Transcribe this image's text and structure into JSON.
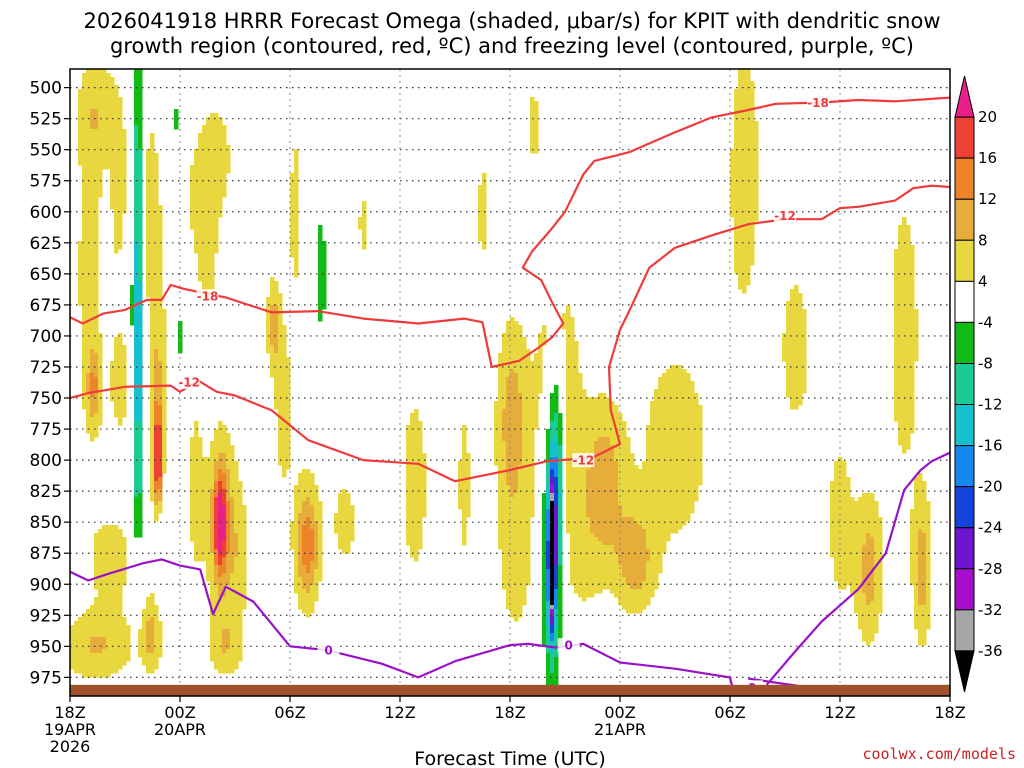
{
  "chart_data": {
    "type": "heatmap",
    "title_line1": "2026041918 HRRR Forecast Omega (shaded, μbar/s) for KPIT with dendritic snow",
    "title_line2": "growth region (contoured, red, ºC) and freezing level (contoured, purple, ºC)",
    "xlabel": "Forecast Time (UTC)",
    "y_ticks": [
      "500",
      "525",
      "550",
      "575",
      "600",
      "625",
      "650",
      "675",
      "700",
      "725",
      "750",
      "775",
      "800",
      "825",
      "850",
      "875",
      "900",
      "925",
      "950",
      "975"
    ],
    "y_values": [
      500,
      525,
      550,
      575,
      600,
      625,
      650,
      675,
      700,
      725,
      750,
      775,
      800,
      825,
      850,
      875,
      900,
      925,
      950,
      975
    ],
    "ylim": [
      485,
      990
    ],
    "x_ticks": [
      {
        "h": 0,
        "l1": "18Z",
        "l2": "19APR",
        "l3": "2026"
      },
      {
        "h": 6,
        "l1": "00Z",
        "l2": "20APR",
        "l3": ""
      },
      {
        "h": 12,
        "l1": "06Z",
        "l2": "",
        "l3": ""
      },
      {
        "h": 18,
        "l1": "12Z",
        "l2": "",
        "l3": ""
      },
      {
        "h": 24,
        "l1": "18Z",
        "l2": "",
        "l3": ""
      },
      {
        "h": 30,
        "l1": "00Z",
        "l2": "21APR",
        "l3": ""
      },
      {
        "h": 36,
        "l1": "06Z",
        "l2": "",
        "l3": ""
      },
      {
        "h": 42,
        "l1": "12Z",
        "l2": "",
        "l3": ""
      },
      {
        "h": 48,
        "l1": "18Z",
        "l2": "",
        "l3": ""
      }
    ],
    "xlim": [
      0,
      48
    ],
    "colorbar": {
      "labels": [
        "20",
        "16",
        "12",
        "8",
        "4",
        "-4",
        "-8",
        "-12",
        "-16",
        "-20",
        "-24",
        "-28",
        "-32",
        "-36"
      ],
      "colors": [
        "#e8208a",
        "#ef4035",
        "#ee8429",
        "#e6ad3b",
        "#e9d73f",
        "#ffffff",
        "#11bb16",
        "#1ccb93",
        "#17c0cf",
        "#1589f0",
        "#1443de",
        "#6d16cd",
        "#a410c9",
        "#a6a6a6",
        "#000000"
      ]
    },
    "omega_blobs": [
      {
        "h": 1.3,
        "p": 520,
        "sh": 0.9,
        "sp": 40,
        "v": 5
      },
      {
        "h": 1.0,
        "p": 650,
        "sh": 1.0,
        "sp": 180,
        "v": 5
      },
      {
        "h": 1.3,
        "p": 740,
        "sh": 0.35,
        "sp": 30,
        "v": 10
      },
      {
        "h": 2.5,
        "p": 570,
        "sh": 0.8,
        "sp": 90,
        "v": 6
      },
      {
        "h": 2.3,
        "p": 880,
        "sh": 1.3,
        "sp": 40,
        "v": 6
      },
      {
        "h": 1.5,
        "p": 950,
        "sh": 2.2,
        "sp": 30,
        "v": 8
      },
      {
        "h": 2.8,
        "p": 740,
        "sh": 0.8,
        "sp": 60,
        "v": 5
      },
      {
        "h": 4.4,
        "p": 600,
        "sh": 0.5,
        "sp": 90,
        "v": 6
      },
      {
        "h": 4.8,
        "p": 770,
        "sh": 0.5,
        "sp": 130,
        "v": 9
      },
      {
        "h": 4.8,
        "p": 800,
        "sh": 0.2,
        "sp": 40,
        "v": 18
      },
      {
        "h": 4.4,
        "p": 940,
        "sh": 0.6,
        "sp": 30,
        "v": 8
      },
      {
        "h": 6.8,
        "p": 820,
        "sh": 0.6,
        "sp": 120,
        "v": 4.5
      },
      {
        "h": 8.3,
        "p": 850,
        "sh": 0.9,
        "sp": 85,
        "v": 9
      },
      {
        "h": 8.2,
        "p": 850,
        "sh": 0.35,
        "sp": 40,
        "v": 17
      },
      {
        "h": 8.5,
        "p": 950,
        "sh": 1.0,
        "sp": 25,
        "v": 6
      },
      {
        "h": 11.1,
        "p": 690,
        "sh": 0.4,
        "sp": 40,
        "v": 9
      },
      {
        "h": 11.6,
        "p": 760,
        "sh": 0.5,
        "sp": 70,
        "v": 6
      },
      {
        "h": 12.3,
        "p": 600,
        "sh": 0.5,
        "sp": 110,
        "v": 5
      },
      {
        "h": 13.0,
        "p": 870,
        "sh": 0.6,
        "sp": 40,
        "v": 10
      },
      {
        "h": 12.8,
        "p": 860,
        "sh": 0.9,
        "sp": 80,
        "v": 5
      },
      {
        "h": 15.0,
        "p": 850,
        "sh": 1.0,
        "sp": 55,
        "v": 5
      },
      {
        "h": 16.0,
        "p": 610,
        "sh": 0.4,
        "sp": 40,
        "v": 5
      },
      {
        "h": 18.8,
        "p": 820,
        "sh": 1.2,
        "sp": 130,
        "v": 5
      },
      {
        "h": 22.5,
        "p": 600,
        "sh": 0.4,
        "sp": 70,
        "v": 5
      },
      {
        "h": 21.5,
        "p": 820,
        "sh": 0.5,
        "sp": 100,
        "v": 5
      },
      {
        "h": 25.3,
        "p": 530,
        "sh": 0.5,
        "sp": 50,
        "v": 5
      },
      {
        "h": 24.1,
        "p": 760,
        "sh": 0.9,
        "sp": 80,
        "v": 9
      },
      {
        "h": 24.3,
        "p": 880,
        "sh": 1.3,
        "sp": 95,
        "v": 5
      },
      {
        "h": 26.5,
        "p": 720,
        "sh": 1.2,
        "sp": 95,
        "v": 7
      },
      {
        "h": 27.8,
        "p": 850,
        "sh": 1.6,
        "sp": 110,
        "v": 5
      },
      {
        "h": 30.8,
        "p": 880,
        "sh": 1.0,
        "sp": 40,
        "v": 9
      },
      {
        "h": 29.2,
        "p": 820,
        "sh": 1.0,
        "sp": 60,
        "v": 8
      },
      {
        "h": 33.0,
        "p": 790,
        "sh": 3.2,
        "sp": 140,
        "v": 5
      },
      {
        "h": 36.8,
        "p": 560,
        "sh": 1.4,
        "sp": 170,
        "v": 5
      },
      {
        "h": 39.6,
        "p": 710,
        "sh": 1.2,
        "sp": 100,
        "v": 5
      },
      {
        "h": 42.0,
        "p": 850,
        "sh": 1.1,
        "sp": 110,
        "v": 5
      },
      {
        "h": 43.6,
        "p": 890,
        "sh": 0.7,
        "sp": 60,
        "v": 9
      },
      {
        "h": 45.5,
        "p": 700,
        "sh": 1.4,
        "sp": 200,
        "v": 5
      },
      {
        "h": 46.5,
        "p": 890,
        "sh": 0.5,
        "sp": 60,
        "v": 9
      },
      {
        "h": 8.0,
        "p": 550,
        "sh": 1.0,
        "sp": 50,
        "v": 4.5
      },
      {
        "h": 9.3,
        "p": 880,
        "sh": 0.7,
        "sp": 60,
        "v": 4.5
      },
      {
        "h": 7.1,
        "p": 590,
        "sh": 1.5,
        "sp": 60,
        "v": 4.5
      },
      {
        "h": 7.5,
        "p": 645,
        "sh": 0.5,
        "sp": 40,
        "v": 4.5
      },
      {
        "h": 26.5,
        "p": 750,
        "sh": 0.5,
        "sp": 70,
        "v": -9
      },
      {
        "h": 26.6,
        "p": 820,
        "sh": 0.3,
        "sp": 50,
        "v": -9
      },
      {
        "h": 3.7,
        "p": 600,
        "sh": 0.28,
        "sp": 160,
        "v": -12
      },
      {
        "h": 3.7,
        "p": 760,
        "sh": 0.35,
        "sp": 120,
        "v": -11
      },
      {
        "h": 8.6,
        "p": 630,
        "sh": 0.2,
        "sp": 30,
        "v": -5
      },
      {
        "h": 13.7,
        "p": 650,
        "sh": 0.25,
        "sp": 50,
        "v": -8
      },
      {
        "h": 4.9,
        "p": 860,
        "sh": 0.35,
        "sp": 60,
        "v": -7
      },
      {
        "h": 2.0,
        "p": 620,
        "sh": 0.3,
        "sp": 60,
        "v": -6
      },
      {
        "h": 5.8,
        "p": 530,
        "sh": 0.2,
        "sp": 40,
        "v": -5
      },
      {
        "h": 5.9,
        "p": 700,
        "sh": 0.2,
        "sp": 60,
        "v": -6
      }
    ],
    "omega_column": {
      "h": 26.3,
      "p": 876,
      "sh_core": 0.16,
      "sp_core": 48,
      "v_core": -40,
      "sh_out": 0.48,
      "sp_out": 95,
      "v_out": -22
    },
    "dgz_upper": {
      "label": "-18",
      "points": [
        [
          0,
          685
        ],
        [
          0.7,
          690
        ],
        [
          1.8,
          682
        ],
        [
          3,
          679
        ],
        [
          4.2,
          671
        ],
        [
          5,
          671
        ],
        [
          5.5,
          659
        ],
        [
          6.2,
          662
        ],
        [
          8.5,
          669
        ],
        [
          11,
          681
        ],
        [
          13.5,
          680
        ],
        [
          16,
          686
        ],
        [
          17.5,
          688
        ],
        [
          19,
          690
        ],
        [
          21.5,
          686
        ],
        [
          22.5,
          689
        ],
        [
          23,
          725
        ],
        [
          24.5,
          720
        ],
        [
          25.5,
          710
        ],
        [
          26.3,
          701
        ],
        [
          26.9,
          690
        ],
        [
          26.2,
          670
        ],
        [
          25.7,
          655
        ],
        [
          24.7,
          645
        ],
        [
          25.2,
          632
        ],
        [
          26.2,
          615
        ],
        [
          27,
          600
        ],
        [
          28,
          570
        ],
        [
          28.6,
          559
        ],
        [
          30.5,
          552
        ],
        [
          33,
          536
        ],
        [
          35,
          524
        ],
        [
          37,
          518
        ],
        [
          38.5,
          513
        ],
        [
          41,
          512
        ],
        [
          43,
          510
        ],
        [
          45,
          511
        ],
        [
          48,
          508
        ]
      ],
      "label_positions": [
        [
          7.5,
          668
        ],
        [
          40.8,
          512
        ]
      ]
    },
    "dgz_lower": {
      "label": "-12",
      "points": [
        [
          0,
          750
        ],
        [
          1,
          746
        ],
        [
          3,
          741
        ],
        [
          5.5,
          740
        ],
        [
          6,
          745
        ],
        [
          7,
          736
        ],
        [
          8,
          745
        ],
        [
          9,
          748
        ],
        [
          11,
          760
        ],
        [
          13,
          784
        ],
        [
          16,
          800
        ],
        [
          19,
          803
        ],
        [
          21,
          817
        ],
        [
          24,
          808
        ],
        [
          26,
          801
        ],
        [
          28.5,
          798
        ],
        [
          30,
          787
        ],
        [
          29.5,
          760
        ],
        [
          29.4,
          725
        ],
        [
          30,
          695
        ],
        [
          30.5,
          680
        ],
        [
          31.6,
          645
        ],
        [
          33,
          629
        ],
        [
          35,
          619
        ],
        [
          37,
          610
        ],
        [
          39,
          606
        ],
        [
          41,
          606
        ],
        [
          42,
          597
        ],
        [
          43,
          596
        ],
        [
          45,
          591
        ],
        [
          46,
          581
        ],
        [
          47,
          579
        ],
        [
          48,
          580
        ]
      ],
      "label_positions": [
        [
          6.5,
          737
        ],
        [
          28,
          800
        ],
        [
          39,
          603
        ]
      ]
    },
    "freezing_level": {
      "label": "0",
      "points": [
        [
          0,
          890
        ],
        [
          1,
          897
        ],
        [
          2,
          892
        ],
        [
          4,
          883
        ],
        [
          5,
          880
        ],
        [
          6,
          885
        ],
        [
          7.1,
          888
        ],
        [
          7.8,
          924
        ],
        [
          8.5,
          902
        ],
        [
          10,
          914
        ],
        [
          12,
          950
        ],
        [
          14,
          953
        ],
        [
          17,
          964
        ],
        [
          19,
          975
        ],
        [
          21,
          962
        ],
        [
          24,
          949
        ],
        [
          25,
          948
        ],
        [
          26.5,
          951
        ],
        [
          28,
          948
        ],
        [
          30,
          963
        ],
        [
          33,
          968
        ],
        [
          36,
          975
        ],
        [
          36.2,
          987
        ]
      ],
      "label_positions": [
        [
          14.1,
          953
        ],
        [
          27.2,
          949
        ]
      ],
      "points_b": [
        [
          37,
          976
        ],
        [
          39.8,
          982
        ],
        [
          42,
          987
        ]
      ],
      "label_positions_b": [
        [
          37.2,
          983
        ]
      ],
      "points_c": [
        [
          38,
          981
        ],
        [
          39.5,
          955
        ],
        [
          41,
          930
        ],
        [
          43,
          904
        ],
        [
          44.5,
          875
        ],
        [
          45.5,
          824
        ],
        [
          46.4,
          808
        ],
        [
          47,
          801
        ],
        [
          48,
          794
        ]
      ]
    },
    "credit": "coolwx.com/models"
  }
}
